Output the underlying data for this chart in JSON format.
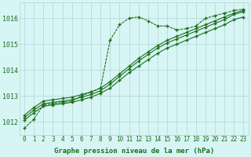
{
  "x": [
    0,
    1,
    2,
    3,
    4,
    5,
    6,
    7,
    8,
    9,
    10,
    11,
    12,
    13,
    14,
    15,
    16,
    17,
    18,
    19,
    20,
    21,
    22,
    23
  ],
  "series1": [
    1011.75,
    1012.1,
    1012.65,
    1012.7,
    1012.75,
    1012.8,
    1013.0,
    1013.15,
    1013.3,
    1015.15,
    1015.75,
    1016.0,
    1016.05,
    1015.9,
    1015.7,
    1015.7,
    1015.55,
    1015.6,
    1015.7,
    1016.0,
    1016.1,
    1016.2,
    1016.3,
    1016.35
  ],
  "series2": [
    1012.05,
    1012.35,
    1012.6,
    1012.65,
    1012.7,
    1012.75,
    1012.85,
    1012.95,
    1013.1,
    1013.3,
    1013.6,
    1013.9,
    1014.15,
    1014.4,
    1014.65,
    1014.85,
    1015.0,
    1015.15,
    1015.3,
    1015.45,
    1015.6,
    1015.75,
    1015.95,
    1016.05
  ],
  "series3": [
    1012.15,
    1012.45,
    1012.7,
    1012.75,
    1012.8,
    1012.85,
    1012.95,
    1013.05,
    1013.2,
    1013.45,
    1013.75,
    1014.05,
    1014.35,
    1014.6,
    1014.85,
    1015.05,
    1015.2,
    1015.35,
    1015.5,
    1015.65,
    1015.8,
    1015.95,
    1016.15,
    1016.25
  ],
  "series4": [
    1012.25,
    1012.55,
    1012.8,
    1012.85,
    1012.9,
    1012.95,
    1013.05,
    1013.15,
    1013.3,
    1013.55,
    1013.85,
    1014.15,
    1014.45,
    1014.7,
    1014.95,
    1015.15,
    1015.3,
    1015.45,
    1015.6,
    1015.75,
    1015.9,
    1016.05,
    1016.2,
    1016.3
  ],
  "line_color": "#1a6e1a",
  "bg_color": "#d8f5f5",
  "grid_color": "#b0d4d4",
  "xlabel": "Graphe pression niveau de la mer (hPa)",
  "ylim_min": 1011.5,
  "ylim_max": 1016.6,
  "yticks": [
    1012,
    1013,
    1014,
    1015,
    1016
  ],
  "xticks": [
    0,
    1,
    2,
    3,
    4,
    5,
    6,
    7,
    8,
    9,
    10,
    11,
    12,
    13,
    14,
    15,
    16,
    17,
    18,
    19,
    20,
    21,
    22,
    23
  ],
  "marker": "+",
  "markersize": 3.5,
  "linewidth": 0.8,
  "xlabel_fontsize": 6.5,
  "tick_fontsize": 5.5
}
